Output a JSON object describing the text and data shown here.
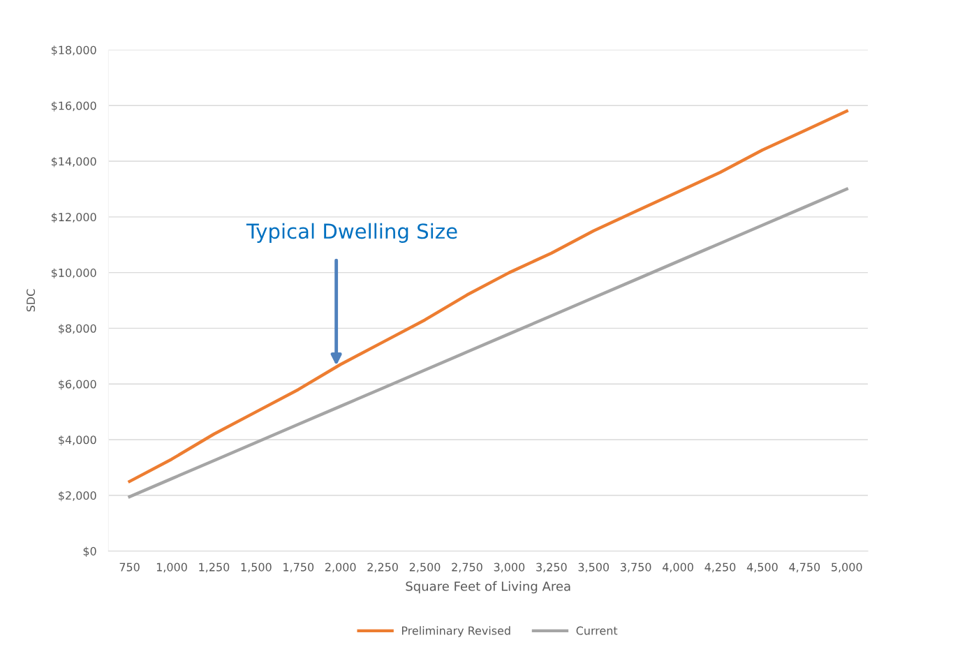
{
  "chart_data": {
    "type": "line",
    "xlabel": "Square Feet of Living Area",
    "ylabel": "SDC",
    "categories": [
      "750",
      "1,000",
      "1,250",
      "1,500",
      "1,750",
      "2,000",
      "2,250",
      "2,500",
      "2,750",
      "3,000",
      "3,250",
      "3,500",
      "3,750",
      "4,000",
      "4,250",
      "4,500",
      "4,750",
      "5,000"
    ],
    "series": [
      {
        "name": "Preliminary Revised",
        "color": "#ed7d31",
        "values": [
          2500,
          3300,
          4200,
          5000,
          5800,
          6700,
          7500,
          8300,
          9200,
          10000,
          10700,
          11500,
          12200,
          12900,
          13600,
          14400,
          15100,
          15800
        ]
      },
      {
        "name": "Current",
        "color": "#a5a5a5",
        "values": [
          1950,
          2600,
          3250,
          3900,
          4550,
          5200,
          5850,
          6500,
          7150,
          7800,
          8450,
          9100,
          9750,
          10400,
          11050,
          11700,
          12350,
          13000
        ]
      }
    ],
    "ylim": [
      0,
      18000
    ],
    "yticks": [
      {
        "value": 0,
        "label": "$0"
      },
      {
        "value": 2000,
        "label": "$2,000"
      },
      {
        "value": 4000,
        "label": "$4,000"
      },
      {
        "value": 6000,
        "label": "$6,000"
      },
      {
        "value": 8000,
        "label": "$8,000"
      },
      {
        "value": 10000,
        "label": "$10,000"
      },
      {
        "value": 12000,
        "label": "$12,000"
      },
      {
        "value": 14000,
        "label": "$14,000"
      },
      {
        "value": 16000,
        "label": "$16,000"
      },
      {
        "value": 18000,
        "label": "$18,000"
      }
    ],
    "annotations": [
      "Typical Dwelling Size"
    ],
    "grid": "y",
    "legend": "bottom",
    "marker": "none",
    "line_style": "solid"
  }
}
